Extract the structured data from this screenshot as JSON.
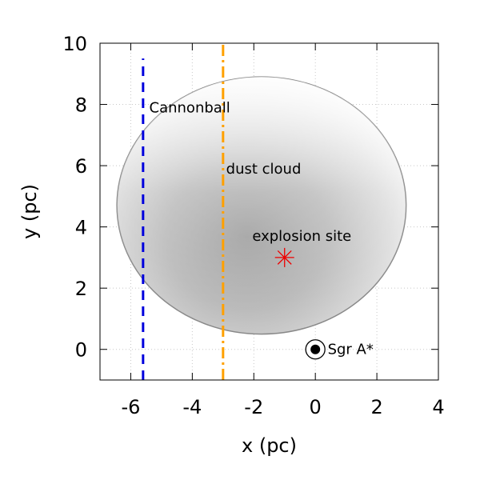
{
  "chart_data": {
    "type": "scatter",
    "title": "",
    "xlabel": "x (pc)",
    "ylabel": "y (pc)",
    "xlim": [
      -7,
      4
    ],
    "ylim": [
      -1,
      10
    ],
    "xticks": [
      -6,
      -4,
      -2,
      0,
      2,
      4
    ],
    "yticks": [
      0,
      2,
      4,
      6,
      8,
      10
    ],
    "xtick_labels": [
      "-6",
      "-4",
      "-2",
      "0",
      "2",
      "4"
    ],
    "ytick_labels": [
      "0",
      "2",
      "4",
      "6",
      "8",
      "10"
    ],
    "grid": true,
    "series": [
      {
        "kind": "filled-region",
        "shape": "ellipse",
        "center": [
          -1.75,
          4.7
        ],
        "radius": [
          4.7,
          4.2
        ],
        "fill": "grayscale-shaded",
        "label": "dust cloud",
        "label_at": [
          -2.9,
          5.9
        ]
      },
      {
        "kind": "vertical-line",
        "x": -5.6,
        "y_range": [
          -1,
          9.5
        ],
        "style": "dashed",
        "color": "#0000dd",
        "label": "Cannonball",
        "label_at": [
          -5.4,
          7.9
        ]
      },
      {
        "kind": "vertical-line",
        "x": -3.0,
        "y_range": [
          -1,
          10
        ],
        "style": "dash-dot",
        "color": "#ffa000",
        "label": ""
      },
      {
        "kind": "marker",
        "symbol": "asterisk",
        "x": -1.0,
        "y": 3.0,
        "color": "#ee0000",
        "label": "explosion site",
        "label_at": [
          -2.05,
          3.7
        ]
      },
      {
        "kind": "marker",
        "symbol": "sun",
        "x": 0.0,
        "y": 0.0,
        "color": "#000000",
        "label": "Sgr A*",
        "label_at": [
          0.4,
          0.0
        ]
      }
    ]
  },
  "colors": {
    "axis": "#000000",
    "grid": "#c8c8c8",
    "cloud_edge": "#888888"
  }
}
